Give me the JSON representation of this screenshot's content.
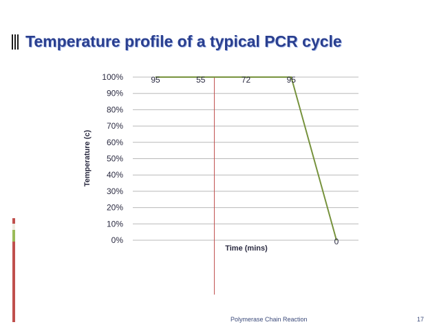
{
  "slide": {
    "title": "Temperature profile of a typical PCR cycle",
    "footer": "Polymerase Chain Reaction",
    "page_number": "17",
    "accent_colors": [
      "#c0504d",
      "#eeece1",
      "#9bbb59"
    ]
  },
  "chart_data": {
    "type": "line",
    "title": "",
    "xlabel": "Time (mins)",
    "ylabel": "Temperature (c)",
    "y_ticks": [
      "100%",
      "90%",
      "80%",
      "70%",
      "60%",
      "50%",
      "40%",
      "30%",
      "20%",
      "10%",
      "0%"
    ],
    "ylim": [
      0,
      100
    ],
    "grid": true,
    "series": [
      {
        "color": "#76923c",
        "points": [
          {
            "x": 0,
            "y": 100,
            "label": "95"
          },
          {
            "x": 1,
            "y": 100,
            "label": "55"
          },
          {
            "x": 2,
            "y": 100,
            "label": "72"
          },
          {
            "x": 3,
            "y": 100,
            "label": "95"
          },
          {
            "x": 4,
            "y": 0,
            "label": "0"
          }
        ]
      }
    ],
    "vertical_marker": {
      "x": 1.3,
      "color": "#c0504d"
    }
  }
}
